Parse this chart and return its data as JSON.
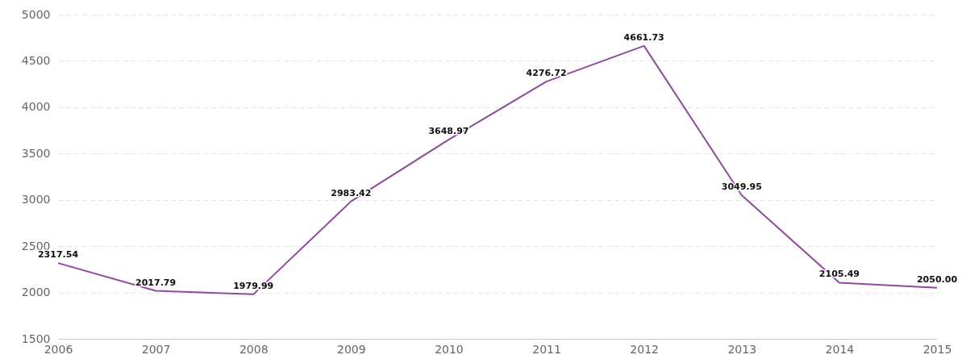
{
  "chart_data": {
    "type": "line",
    "categories": [
      "2006",
      "2007",
      "2008",
      "2009",
      "2010",
      "2011",
      "2012",
      "2013",
      "2014",
      "2015"
    ],
    "series": [
      {
        "color": "#8e4a9b",
        "values": [
          2317.54,
          2017.79,
          1979.99,
          2983.42,
          3648.97,
          4276.72,
          4661.73,
          3049.95,
          2105.49,
          2050.0
        ]
      }
    ],
    "value_labels": [
      "2317.54",
      "2017.79",
      "1979.99",
      "2983.42",
      "3648.97",
      "4276.72",
      "4661.73",
      "3049.95",
      "2105.49",
      "2050.00"
    ],
    "ylim": [
      1500,
      5000
    ],
    "yticks": [
      1500,
      2000,
      2500,
      3000,
      3500,
      4000,
      4500,
      5000
    ],
    "grid": "y",
    "marker": "none",
    "line_style": "solid"
  }
}
